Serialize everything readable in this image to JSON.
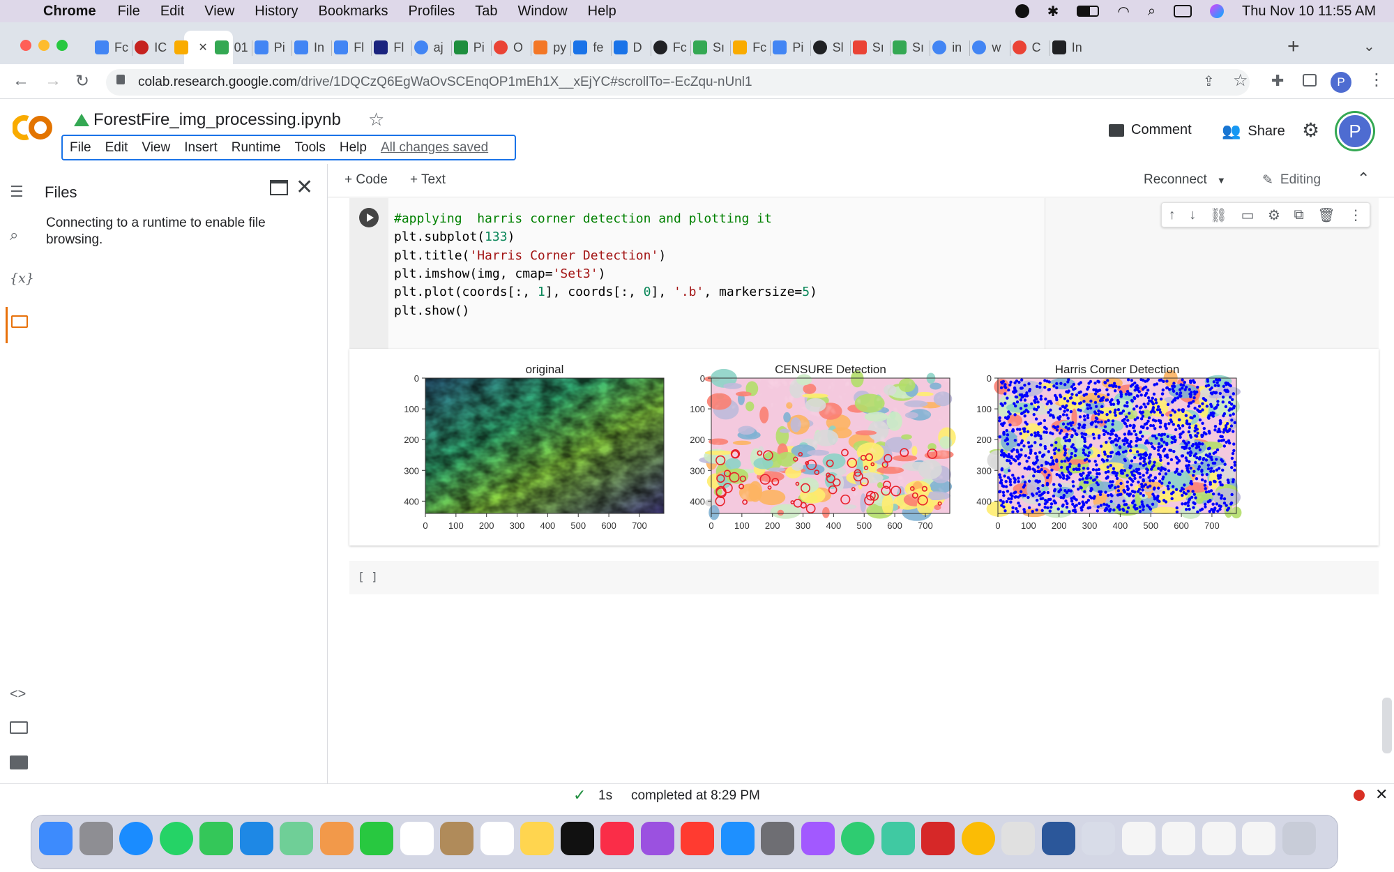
{
  "macos_menubar": {
    "app": "Chrome",
    "items": [
      "File",
      "Edit",
      "View",
      "History",
      "Bookmarks",
      "Profiles",
      "Tab",
      "Window",
      "Help"
    ],
    "datetime": "Thu Nov 10  11:55 AM"
  },
  "browser": {
    "tabs": [
      {
        "label": "Fc",
        "icon": "docs-icon",
        "color": "#4285f4"
      },
      {
        "label": "IC",
        "icon": "gear-icon",
        "color": "#c5221f"
      },
      {
        "label": "",
        "icon": "colab-icon",
        "color": "#f9ab00",
        "active": true
      },
      {
        "label": "01",
        "icon": "drive-icon",
        "color": "#34a853"
      },
      {
        "label": "Pi",
        "icon": "docs-icon",
        "color": "#4285f4"
      },
      {
        "label": "In",
        "icon": "docs-icon",
        "color": "#4285f4"
      },
      {
        "label": "Fl",
        "icon": "docs-icon",
        "color": "#4285f4"
      },
      {
        "label": "Fl",
        "icon": "nt-icon",
        "color": "#1a237e"
      },
      {
        "label": "aj",
        "icon": "google-icon",
        "color": "#4285f4"
      },
      {
        "label": "Pi",
        "icon": "link-icon",
        "color": "#1e8e3e"
      },
      {
        "label": "O",
        "icon": "photos-icon",
        "color": "#ea4335"
      },
      {
        "label": "py",
        "icon": "jupyter-icon",
        "color": "#f37726"
      },
      {
        "label": "fe",
        "icon": "k-icon",
        "color": "#1a73e8"
      },
      {
        "label": "D",
        "icon": "download-icon",
        "color": "#1a73e8"
      },
      {
        "label": "Fc",
        "icon": "github-icon",
        "color": "#202124"
      },
      {
        "label": "Sı",
        "icon": "drive-icon",
        "color": "#34a853"
      },
      {
        "label": "Fc",
        "icon": "slides-icon",
        "color": "#f9ab00"
      },
      {
        "label": "Pi",
        "icon": "docs-icon",
        "color": "#4285f4"
      },
      {
        "label": "Sl",
        "icon": "github-icon",
        "color": "#202124"
      },
      {
        "label": "Sı",
        "icon": "gmail-icon",
        "color": "#ea4335"
      },
      {
        "label": "Sı",
        "icon": "drive-icon",
        "color": "#34a853"
      },
      {
        "label": "in",
        "icon": "google-icon",
        "color": "#4285f4"
      },
      {
        "label": "w",
        "icon": "google-icon",
        "color": "#4285f4"
      },
      {
        "label": "C",
        "icon": "chrome-icon",
        "color": "#ea4335"
      },
      {
        "label": "In",
        "icon": "io-icon",
        "color": "#202124"
      }
    ],
    "url_host": "colab.research.google.com",
    "url_path": "/drive/1DQCzQ6EgWaOvSCEnqOP1mEh1X__xEjYC#scrollTo=-EcZqu-nUnl1",
    "profile_initial": "P"
  },
  "colab": {
    "notebook_title": "ForestFire_img_processing.ipynb",
    "menu": [
      "File",
      "Edit",
      "View",
      "Insert",
      "Runtime",
      "Tools",
      "Help"
    ],
    "saved_status": "All changes saved",
    "comment_label": "Comment",
    "share_label": "Share",
    "avatar_initial": "P",
    "add_code_label": "+ Code",
    "add_text_label": "+ Text",
    "reconnect_label": "Reconnect",
    "editing_label": "Editing"
  },
  "sidebar": {
    "title": "Files",
    "message": "Connecting to a runtime to enable file browsing."
  },
  "code_cell": {
    "lines": [
      [
        {
          "t": "#applying  harris corner detection and plotting it",
          "c": "cm"
        }
      ],
      [
        {
          "t": "plt.subplot(",
          "c": ""
        },
        {
          "t": "133",
          "c": "nm"
        },
        {
          "t": ")",
          "c": ""
        }
      ],
      [
        {
          "t": "plt.title(",
          "c": ""
        },
        {
          "t": "'Harris Corner Detection'",
          "c": "st"
        },
        {
          "t": ")",
          "c": ""
        }
      ],
      [
        {
          "t": "plt.imshow(img, cmap=",
          "c": ""
        },
        {
          "t": "'Set3'",
          "c": "st"
        },
        {
          "t": ")",
          "c": ""
        }
      ],
      [
        {
          "t": "plt.plot(coords[:, ",
          "c": ""
        },
        {
          "t": "1",
          "c": "nm"
        },
        {
          "t": "], coords[:, ",
          "c": ""
        },
        {
          "t": "0",
          "c": "nm"
        },
        {
          "t": "], ",
          "c": ""
        },
        {
          "t": "'.b'",
          "c": "st"
        },
        {
          "t": ", markersize=",
          "c": ""
        },
        {
          "t": "5",
          "c": "nm"
        },
        {
          "t": ")",
          "c": ""
        }
      ],
      [
        {
          "t": "plt.show()",
          "c": ""
        }
      ]
    ]
  },
  "chart_data": [
    {
      "type": "heatmap",
      "title": "original",
      "x_ticks": [
        0,
        100,
        200,
        300,
        400,
        500,
        600,
        700
      ],
      "y_ticks": [
        0,
        100,
        200,
        300,
        400
      ],
      "xlim": [
        0,
        780
      ],
      "ylim": [
        0,
        440
      ],
      "colormap": "viridis"
    },
    {
      "type": "heatmap",
      "title": "CENSURE Detection",
      "x_ticks": [
        0,
        100,
        200,
        300,
        400,
        500,
        600,
        700
      ],
      "y_ticks": [
        0,
        100,
        200,
        300,
        400
      ],
      "xlim": [
        0,
        780
      ],
      "ylim": [
        0,
        440
      ],
      "colormap": "Set3",
      "marker_color": "#e8202a"
    },
    {
      "type": "scatter",
      "title": "Harris Corner Detection",
      "x_ticks": [
        0,
        100,
        200,
        300,
        400,
        500,
        600,
        700
      ],
      "y_ticks": [
        0,
        100,
        200,
        300,
        400
      ],
      "xlim": [
        0,
        780
      ],
      "ylim": [
        0,
        440
      ],
      "colormap": "Set3",
      "marker_color": "#0000ff"
    }
  ],
  "empty_cell": {
    "label": "[ ]"
  },
  "status": {
    "duration": "1s",
    "message": "completed at 8:29 PM"
  }
}
